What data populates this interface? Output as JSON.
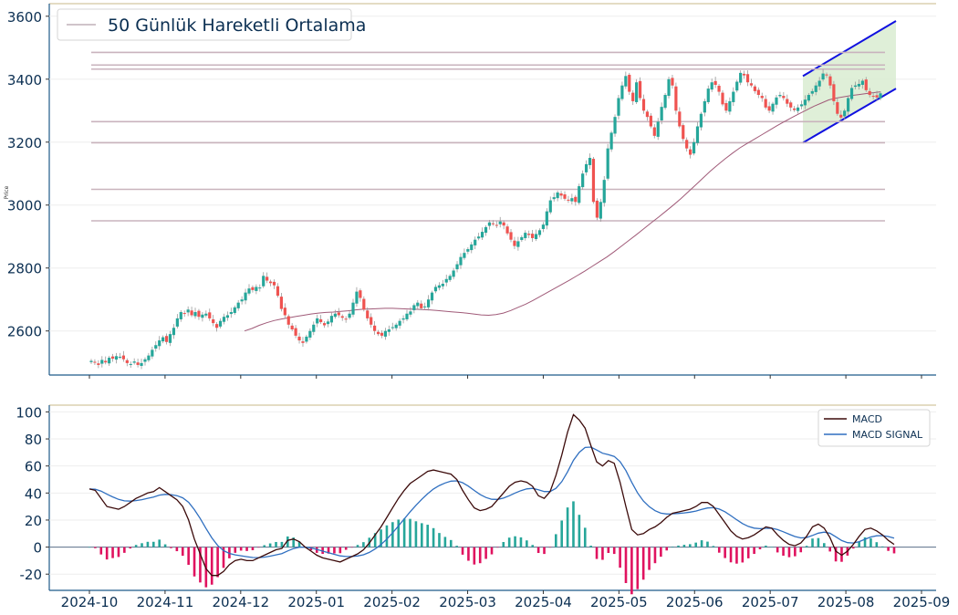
{
  "chart_data": [
    {
      "type": "candlestick",
      "ylabel": "Price",
      "ylim": [
        2460,
        3640
      ],
      "yticks": [
        2600,
        2800,
        3000,
        3200,
        3400,
        3600
      ],
      "legend": {
        "placement": "top-left",
        "label": "50 Günlük Hareketli Ortalama"
      },
      "colors": {
        "up": "#26a69a",
        "down": "#ef5350",
        "ma": "#a05a78",
        "hlines": "#c9b3bd",
        "channel_line": "#1010e0",
        "channel_fill": "#d9ecd1"
      },
      "horizontal_levels": [
        3485,
        3445,
        3432,
        3265,
        3198,
        3050,
        2950
      ],
      "ohlc_close": [
        2505,
        2500,
        2492,
        2508,
        2500,
        2515,
        2512,
        2520,
        2518,
        2510,
        2498,
        2495,
        2503,
        2492,
        2498,
        2510,
        2522,
        2540,
        2555,
        2570,
        2580,
        2565,
        2590,
        2610,
        2640,
        2660,
        2655,
        2668,
        2650,
        2660,
        2645,
        2652,
        2655,
        2640,
        2625,
        2610,
        2632,
        2645,
        2650,
        2660,
        2675,
        2690,
        2700,
        2722,
        2735,
        2730,
        2740,
        2738,
        2775,
        2760,
        2752,
        2745,
        2712,
        2670,
        2650,
        2620,
        2605,
        2585,
        2570,
        2562,
        2582,
        2600,
        2620,
        2640,
        2628,
        2618,
        2630,
        2648,
        2655,
        2650,
        2642,
        2638,
        2655,
        2690,
        2725,
        2705,
        2668,
        2640,
        2620,
        2600,
        2590,
        2585,
        2600,
        2605,
        2612,
        2620,
        2632,
        2640,
        2655,
        2662,
        2682,
        2690,
        2672,
        2678,
        2700,
        2722,
        2740,
        2745,
        2750,
        2765,
        2775,
        2792,
        2812,
        2835,
        2848,
        2860,
        2875,
        2890,
        2900,
        2915,
        2930,
        2945,
        2940,
        2935,
        2948,
        2935,
        2910,
        2890,
        2870,
        2885,
        2898,
        2912,
        2905,
        2895,
        2908,
        2920,
        2938,
        2980,
        3015,
        3025,
        3040,
        3030,
        3020,
        3015,
        3022,
        3010,
        3060,
        3100,
        3130,
        3150,
        3010,
        2960,
        3010,
        3080,
        3180,
        3230,
        3280,
        3340,
        3380,
        3410,
        3360,
        3330,
        3390,
        3340,
        3300,
        3280,
        3250,
        3220,
        3265,
        3312,
        3350,
        3400,
        3380,
        3300,
        3250,
        3210,
        3180,
        3160,
        3200,
        3250,
        3290,
        3330,
        3370,
        3390,
        3382,
        3360,
        3320,
        3300,
        3330,
        3360,
        3392,
        3420,
        3412,
        3390,
        3380,
        3362,
        3350,
        3340,
        3310,
        3300,
        3322,
        3342,
        3350,
        3340,
        3322,
        3310,
        3302,
        3310,
        3320,
        3335,
        3350,
        3362,
        3380,
        3395,
        3418,
        3412,
        3380,
        3330,
        3290,
        3278,
        3300,
        3340,
        3372,
        3380,
        3385,
        3395,
        3365,
        3350,
        3345,
        3342,
        3355
      ],
      "ma50": [
        2600,
        2608,
        2618,
        2626,
        2633,
        2638,
        2642,
        2646,
        2650,
        2654,
        2657,
        2659,
        2660,
        2662,
        2664,
        2667,
        2669,
        2670,
        2671,
        2672,
        2672,
        2671,
        2670,
        2669,
        2668,
        2667,
        2665,
        2663,
        2661,
        2659,
        2657,
        2654,
        2651,
        2650,
        2652,
        2657,
        2665,
        2675,
        2685,
        2697,
        2710,
        2723,
        2736,
        2749,
        2762,
        2776,
        2790,
        2805,
        2820,
        2835,
        2852,
        2870,
        2888,
        2906,
        2925,
        2944,
        2962,
        2981,
        3000,
        3020,
        3042,
        3064,
        3086,
        3108,
        3128,
        3147,
        3165,
        3182,
        3196,
        3210,
        3224,
        3238,
        3252,
        3265,
        3278,
        3290,
        3302,
        3314,
        3324,
        3334,
        3340,
        3344,
        3348,
        3351,
        3354,
        3357,
        3360
      ],
      "channel": {
        "upper": [
          3410,
          3585
        ],
        "lower": [
          3198,
          3370
        ]
      }
    },
    {
      "type": "line+bar",
      "ylim": [
        -32,
        105
      ],
      "yticks": [
        -20,
        0,
        20,
        40,
        60,
        80,
        100
      ],
      "legend": {
        "placement": "top-right",
        "entries": [
          "MACD",
          "MACD SIGNAL"
        ]
      },
      "colors": {
        "macd": "#3b0a0a",
        "signal": "#2f6fc0",
        "hist_pos": "#26a69a",
        "hist_neg": "#e0125f"
      },
      "macd": [
        43,
        42,
        36,
        30,
        29,
        28,
        30,
        33,
        36,
        38,
        40,
        41,
        44,
        41,
        38,
        35,
        30,
        20,
        6,
        -5,
        -16,
        -21,
        -21,
        -18,
        -13,
        -10,
        -9,
        -10,
        -10,
        -8,
        -6,
        -4,
        -2,
        -1,
        5,
        6,
        4,
        0,
        -3,
        -6,
        -8,
        -9,
        -10,
        -11,
        -9,
        -7,
        -5,
        -2,
        3,
        9,
        15,
        22,
        29,
        36,
        42,
        47,
        50,
        53,
        56,
        57,
        56,
        55,
        54,
        50,
        42,
        35,
        29,
        27,
        28,
        30,
        35,
        40,
        45,
        48,
        49,
        48,
        45,
        38,
        36,
        41,
        53,
        68,
        85,
        98,
        94,
        88,
        75,
        63,
        60,
        64,
        62,
        48,
        30,
        13,
        9,
        10,
        13,
        15,
        18,
        22,
        25,
        26,
        27,
        28,
        30,
        33,
        33,
        30,
        24,
        18,
        12,
        8,
        6,
        7,
        9,
        12,
        15,
        14,
        9,
        5,
        2,
        1,
        3,
        8,
        15,
        17,
        14,
        7,
        -3,
        -6,
        -3,
        2,
        8,
        13,
        14,
        12,
        9,
        5,
        2
      ]
    }
  ],
  "xaxis": {
    "ticks": [
      "2024-10",
      "2024-11",
      "2024-12",
      "2025-01",
      "2025-02",
      "2025-03",
      "2025-04",
      "2025-05",
      "2025-06",
      "2025-07",
      "2025-08",
      "2025-09"
    ]
  }
}
